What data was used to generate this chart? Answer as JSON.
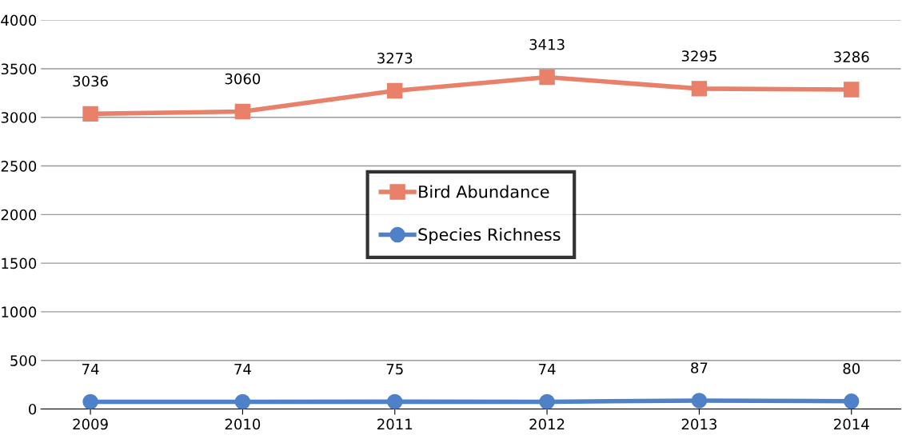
{
  "chart_data": {
    "type": "line",
    "categories": [
      "2009",
      "2010",
      "2011",
      "2012",
      "2013",
      "2014"
    ],
    "series": [
      {
        "name": "Bird Abundance",
        "color": "#e8806a",
        "marker": "square",
        "values": [
          3036,
          3060,
          3273,
          3413,
          3295,
          3286
        ]
      },
      {
        "name": "Species Richness",
        "color": "#4f81c9",
        "marker": "circle",
        "values": [
          74,
          74,
          75,
          74,
          87,
          80
        ]
      }
    ],
    "ylim": [
      0,
      4000
    ],
    "yticks": [
      0,
      500,
      1000,
      1500,
      2000,
      2500,
      3000,
      3500,
      4000
    ],
    "grid": "y",
    "legend": "center",
    "data_labels": true,
    "line_style": "solid"
  }
}
